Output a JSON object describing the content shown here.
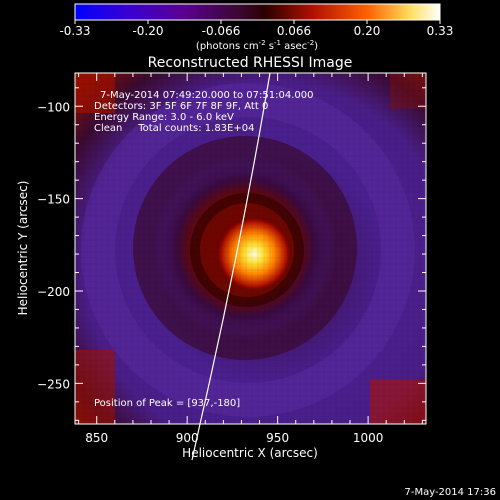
{
  "colorbar": {
    "ticks": [
      "-0.33",
      "-0.20",
      "-0.066",
      "0.066",
      "0.20",
      "0.33"
    ],
    "unit_base": "(photons cm",
    "unit_exp1": "-2",
    "unit_mid": " s",
    "unit_exp2": "-1",
    "unit_mid2": " asec",
    "unit_exp3": "-2",
    "unit_end": ")",
    "colors": [
      "#0000ff",
      "#4b00b8",
      "#3a1060",
      "#200000",
      "#b01800",
      "#ff6000",
      "#ffe060",
      "#ffffff"
    ]
  },
  "image": {
    "title": "Reconstructed RHESSI Image",
    "x_axis_label": "Heliocentric X (arcsec)",
    "y_axis_label": "Heliocentric Y (arcsec)",
    "x_ticks": [
      850,
      900,
      950,
      1000
    ],
    "y_ticks": [
      -100,
      -150,
      -200,
      -250
    ],
    "x_range": [
      838,
      1032
    ],
    "y_range": [
      -272,
      -82
    ],
    "peak_x": 937,
    "peak_y": -180
  },
  "annotations": {
    "time": "7-May-2014 07:49:20.000 to 07:51:04.000",
    "detectors": "Detectors: 3F 5F 6F 7F 8F 9F, Att 0",
    "energy": "Energy Range: 3.0 - 6.0 keV",
    "clean": "Clean     Total counts: 1.83E+04",
    "peak": "Position of Peak = [937,-180]"
  },
  "footer": {
    "timestamp": "7-May-2014 17:36"
  }
}
